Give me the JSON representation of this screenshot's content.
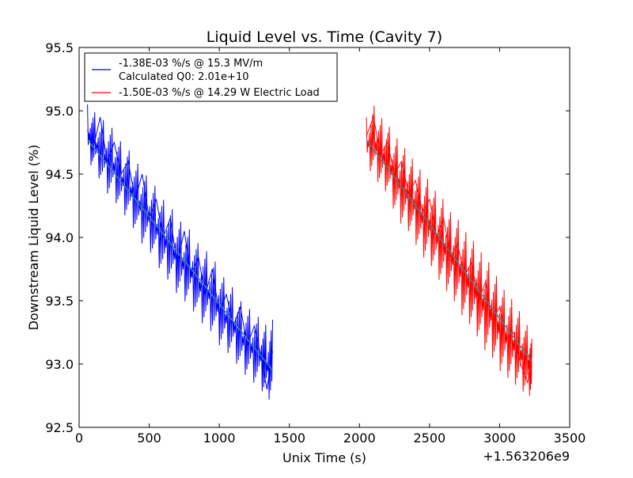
{
  "chart_data": {
    "type": "line",
    "title": "Liquid Level vs. Time (Cavity 7)",
    "xlabel": "Unix Time (s)",
    "ylabel": "Downstream Liquid Level (%)",
    "x_offset_label": "+1.563206e9",
    "xlim": [
      0,
      3500
    ],
    "ylim": [
      92.5,
      95.5
    ],
    "xticks": [
      0,
      500,
      1000,
      1500,
      2000,
      2500,
      3000,
      3500
    ],
    "yticks": [
      92.5,
      93.0,
      93.5,
      94.0,
      94.5,
      95.0,
      95.5
    ],
    "xtick_labels": [
      "0",
      "500",
      "1000",
      "1500",
      "2000",
      "2500",
      "3000",
      "3500"
    ],
    "ytick_labels": [
      "92.5",
      "93.0",
      "93.5",
      "94.0",
      "94.5",
      "95.0",
      "95.5"
    ],
    "grid": false,
    "legend_position": "top-left",
    "legend_entries": [
      {
        "lines": [
          "-1.38E-03 %/s @ 15.3 MV/m",
          "Calculated Q0: 2.01e+10"
        ],
        "color": "#0000ff"
      },
      {
        "lines": [
          "-1.50E-03 %/s @ 14.29 W Electric Load"
        ],
        "color": "#ff0000"
      }
    ],
    "series": [
      {
        "color": "#0000ff",
        "x": [
          60,
          100,
          150,
          200,
          250,
          300,
          350,
          400,
          450,
          500,
          550,
          600,
          650,
          700,
          750,
          800,
          850,
          900,
          950,
          1000,
          1050,
          1100,
          1150,
          1200,
          1250,
          1300,
          1340,
          1380
        ],
        "y": [
          94.85,
          94.7,
          94.95,
          94.6,
          94.75,
          94.5,
          94.6,
          94.3,
          94.5,
          94.15,
          94.3,
          94.0,
          94.15,
          93.8,
          94.05,
          93.7,
          93.85,
          93.55,
          93.75,
          93.4,
          93.55,
          93.3,
          93.45,
          93.15,
          93.3,
          93.05,
          92.8,
          93.1
        ],
        "y_range": [
          [
            94.6,
            95.05
          ],
          [
            94.55,
            95.0
          ],
          [
            94.45,
            94.95
          ],
          [
            94.35,
            94.9
          ],
          [
            94.3,
            94.85
          ],
          [
            94.2,
            94.75
          ],
          [
            94.15,
            94.7
          ],
          [
            94.05,
            94.6
          ],
          [
            93.95,
            94.55
          ],
          [
            93.9,
            94.45
          ],
          [
            93.8,
            94.4
          ],
          [
            93.7,
            94.3
          ],
          [
            93.65,
            94.25
          ],
          [
            93.55,
            94.15
          ],
          [
            93.5,
            94.1
          ],
          [
            93.45,
            94.05
          ],
          [
            93.35,
            93.95
          ],
          [
            93.3,
            93.9
          ],
          [
            93.25,
            93.85
          ],
          [
            93.15,
            93.75
          ],
          [
            93.1,
            93.65
          ],
          [
            93.05,
            93.6
          ],
          [
            92.95,
            93.5
          ],
          [
            92.9,
            93.45
          ],
          [
            92.85,
            93.4
          ],
          [
            92.8,
            93.35
          ],
          [
            92.7,
            93.3
          ],
          [
            92.75,
            93.35
          ]
        ]
      },
      {
        "color": "#ff0000",
        "x": [
          2050,
          2100,
          2150,
          2200,
          2250,
          2300,
          2350,
          2400,
          2450,
          2500,
          2550,
          2600,
          2650,
          2700,
          2750,
          2800,
          2850,
          2900,
          2950,
          3000,
          3050,
          3100,
          3150,
          3200,
          3230
        ],
        "y": [
          94.8,
          94.95,
          94.65,
          94.75,
          94.5,
          94.6,
          94.35,
          94.45,
          94.2,
          94.3,
          94.0,
          94.15,
          93.85,
          93.95,
          93.7,
          93.8,
          93.5,
          93.65,
          93.35,
          93.45,
          93.2,
          93.25,
          93.0,
          92.85,
          93.1
        ],
        "y_range": [
          [
            94.55,
            94.95
          ],
          [
            94.5,
            95.05
          ],
          [
            94.4,
            94.95
          ],
          [
            94.35,
            94.9
          ],
          [
            94.2,
            94.8
          ],
          [
            94.1,
            94.75
          ],
          [
            94.05,
            94.65
          ],
          [
            93.95,
            94.6
          ],
          [
            93.85,
            94.5
          ],
          [
            93.8,
            94.45
          ],
          [
            93.7,
            94.35
          ],
          [
            93.6,
            94.3
          ],
          [
            93.55,
            94.2
          ],
          [
            93.45,
            94.15
          ],
          [
            93.35,
            94.05
          ],
          [
            93.3,
            94.0
          ],
          [
            93.2,
            93.9
          ],
          [
            93.1,
            93.85
          ],
          [
            93.05,
            93.75
          ],
          [
            92.95,
            93.65
          ],
          [
            92.9,
            93.55
          ],
          [
            92.85,
            93.5
          ],
          [
            92.8,
            93.4
          ],
          [
            92.75,
            93.3
          ],
          [
            92.75,
            93.2
          ]
        ]
      }
    ],
    "fit_lines": [
      {
        "color": "#3a8a8a",
        "x": [
          60,
          1380
        ],
        "y": [
          94.77,
          92.95
        ]
      },
      {
        "color": "#3a8a8a",
        "x": [
          2050,
          3230
        ],
        "y": [
          94.77,
          93.02
        ]
      }
    ]
  }
}
